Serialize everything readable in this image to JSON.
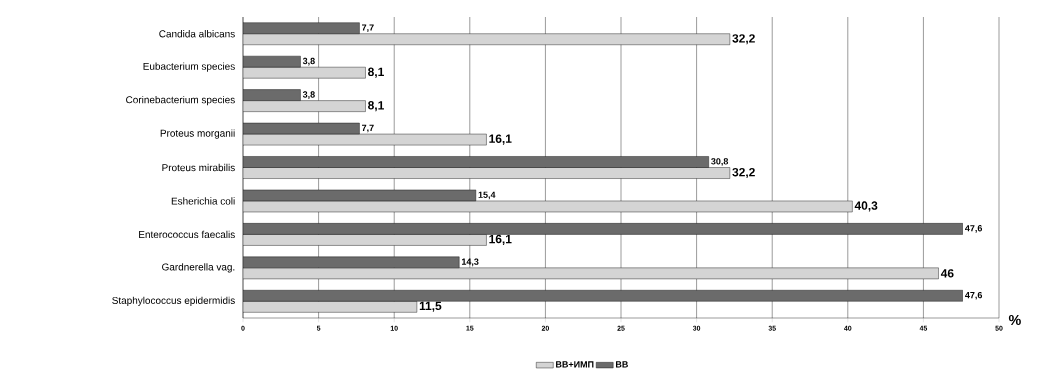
{
  "chart_data": {
    "type": "bar",
    "orientation": "horizontal",
    "categories": [
      "Candida albicans",
      "Eubacterium species",
      "Corinebacterium species",
      "Proteus morganii",
      "Proteus mirabilis",
      "Esherichia coli",
      "Enterococcus faecalis",
      "Gardnerella vag.",
      "Staphylococcus epidermidis"
    ],
    "series": [
      {
        "name": "ВВ+ИМП",
        "color": "#d4d4d4",
        "values": [
          32.2,
          8.1,
          8.1,
          16.1,
          32.2,
          40.3,
          16.1,
          46,
          11.5
        ],
        "value_labels": [
          "32,2",
          "8,1",
          "8,1",
          "16,1",
          "32,2",
          "40,3",
          "16,1",
          "46",
          "11,5"
        ]
      },
      {
        "name": "ВВ",
        "color": "#6b6b6b",
        "values": [
          7.7,
          3.8,
          3.8,
          7.7,
          30.8,
          15.4,
          47.6,
          14.3,
          47.6
        ],
        "value_labels": [
          "7,7",
          "3,8",
          "3,8",
          "7,7",
          "30,8",
          "15,4",
          "47,6",
          "14,3",
          "47,6"
        ]
      }
    ],
    "xlabel": "%",
    "xlim": [
      0,
      50
    ],
    "xticks": [
      0,
      5,
      10,
      15,
      20,
      25,
      30,
      35,
      40,
      45,
      50
    ],
    "grid": "x",
    "legend": "bottom"
  }
}
